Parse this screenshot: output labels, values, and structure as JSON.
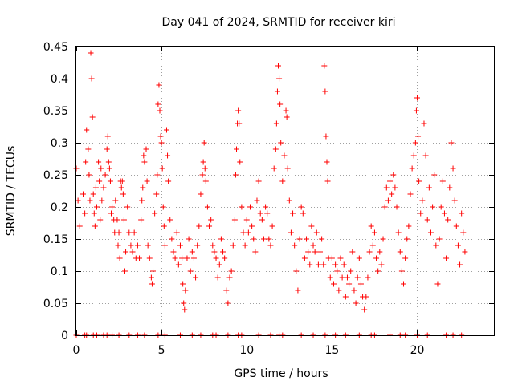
{
  "chart_data": {
    "type": "scatter",
    "title": "Day 041 of 2024, SRMTID for receiver kiri",
    "xlabel": "GPS time / hours",
    "ylabel": "SRMTID / TECUs",
    "xlim": [
      0,
      24.5
    ],
    "ylim": [
      0,
      0.45
    ],
    "x_ticks": [
      0,
      5,
      10,
      15,
      20
    ],
    "y_ticks": [
      0,
      0.05,
      0.1,
      0.15,
      0.2,
      0.25,
      0.3,
      0.35,
      0.4,
      0.45
    ],
    "x_tick_labels": [
      "0",
      "5",
      "10",
      "15",
      "20"
    ],
    "y_tick_labels": [
      "0",
      "0.05",
      "0.1",
      "0.15",
      "0.2",
      "0.25",
      "0.3",
      "0.35",
      "0.4",
      "0.45"
    ],
    "grid": true,
    "marker": "+",
    "color": "#ff0000",
    "points": [
      [
        0.0,
        0.26
      ],
      [
        0.1,
        0.21
      ],
      [
        0.2,
        0.17
      ],
      [
        0.4,
        0.22
      ],
      [
        0.5,
        0.19
      ],
      [
        0.55,
        0.27
      ],
      [
        0.6,
        0.32
      ],
      [
        0.7,
        0.29
      ],
      [
        0.75,
        0.25
      ],
      [
        0.8,
        0.21
      ],
      [
        0.85,
        0.44
      ],
      [
        0.9,
        0.4
      ],
      [
        0.95,
        0.34
      ],
      [
        1.0,
        0.22
      ],
      [
        1.05,
        0.19
      ],
      [
        1.1,
        0.17
      ],
      [
        1.15,
        0.23
      ],
      [
        1.2,
        0.2
      ],
      [
        1.3,
        0.27
      ],
      [
        1.35,
        0.24
      ],
      [
        1.4,
        0.18
      ],
      [
        1.45,
        0.26
      ],
      [
        1.5,
        0.21
      ],
      [
        1.6,
        0.23
      ],
      [
        1.7,
        0.25
      ],
      [
        1.8,
        0.29
      ],
      [
        1.85,
        0.31
      ],
      [
        1.9,
        0.27
      ],
      [
        1.95,
        0.26
      ],
      [
        2.0,
        0.24
      ],
      [
        2.05,
        0.19
      ],
      [
        2.1,
        0.2
      ],
      [
        2.2,
        0.18
      ],
      [
        2.25,
        0.16
      ],
      [
        2.3,
        0.21
      ],
      [
        2.4,
        0.18
      ],
      [
        2.45,
        0.14
      ],
      [
        2.5,
        0.16
      ],
      [
        2.55,
        0.12
      ],
      [
        2.6,
        0.24
      ],
      [
        2.65,
        0.23
      ],
      [
        2.7,
        0.24
      ],
      [
        2.75,
        0.22
      ],
      [
        2.8,
        0.18
      ],
      [
        2.85,
        0.1
      ],
      [
        2.9,
        0.13
      ],
      [
        3.0,
        0.2
      ],
      [
        3.1,
        0.16
      ],
      [
        3.2,
        0.14
      ],
      [
        3.3,
        0.13
      ],
      [
        3.4,
        0.16
      ],
      [
        3.5,
        0.12
      ],
      [
        3.6,
        0.14
      ],
      [
        3.7,
        0.12
      ],
      [
        3.8,
        0.18
      ],
      [
        3.85,
        0.21
      ],
      [
        3.9,
        0.23
      ],
      [
        3.95,
        0.28
      ],
      [
        4.0,
        0.27
      ],
      [
        4.1,
        0.29
      ],
      [
        4.15,
        0.24
      ],
      [
        4.2,
        0.14
      ],
      [
        4.3,
        0.12
      ],
      [
        4.4,
        0.09
      ],
      [
        4.45,
        0.08
      ],
      [
        4.5,
        0.1
      ],
      [
        4.6,
        0.19
      ],
      [
        4.7,
        0.22
      ],
      [
        4.75,
        0.25
      ],
      [
        4.8,
        0.36
      ],
      [
        4.85,
        0.39
      ],
      [
        4.9,
        0.35
      ],
      [
        4.95,
        0.31
      ],
      [
        5.0,
        0.3
      ],
      [
        5.05,
        0.26
      ],
      [
        5.1,
        0.2
      ],
      [
        5.15,
        0.17
      ],
      [
        5.2,
        0.14
      ],
      [
        5.3,
        0.32
      ],
      [
        5.35,
        0.28
      ],
      [
        5.4,
        0.24
      ],
      [
        5.5,
        0.18
      ],
      [
        5.6,
        0.15
      ],
      [
        5.7,
        0.13
      ],
      [
        5.8,
        0.12
      ],
      [
        5.9,
        0.16
      ],
      [
        6.0,
        0.11
      ],
      [
        6.1,
        0.14
      ],
      [
        6.2,
        0.12
      ],
      [
        6.25,
        0.08
      ],
      [
        6.3,
        0.05
      ],
      [
        6.35,
        0.04
      ],
      [
        6.4,
        0.07
      ],
      [
        6.5,
        0.12
      ],
      [
        6.6,
        0.15
      ],
      [
        6.7,
        0.1
      ],
      [
        6.8,
        0.13
      ],
      [
        6.9,
        0.12
      ],
      [
        7.0,
        0.09
      ],
      [
        7.1,
        0.14
      ],
      [
        7.2,
        0.17
      ],
      [
        7.3,
        0.22
      ],
      [
        7.4,
        0.25
      ],
      [
        7.45,
        0.27
      ],
      [
        7.5,
        0.3
      ],
      [
        7.55,
        0.26
      ],
      [
        7.6,
        0.24
      ],
      [
        7.7,
        0.2
      ],
      [
        7.8,
        0.17
      ],
      [
        7.9,
        0.18
      ],
      [
        8.0,
        0.14
      ],
      [
        8.1,
        0.13
      ],
      [
        8.2,
        0.12
      ],
      [
        8.3,
        0.09
      ],
      [
        8.4,
        0.11
      ],
      [
        8.5,
        0.15
      ],
      [
        8.6,
        0.13
      ],
      [
        8.7,
        0.12
      ],
      [
        8.8,
        0.07
      ],
      [
        8.9,
        0.05
      ],
      [
        9.0,
        0.09
      ],
      [
        9.1,
        0.1
      ],
      [
        9.2,
        0.14
      ],
      [
        9.3,
        0.18
      ],
      [
        9.35,
        0.25
      ],
      [
        9.4,
        0.29
      ],
      [
        9.45,
        0.33
      ],
      [
        9.5,
        0.35
      ],
      [
        9.55,
        0.33
      ],
      [
        9.6,
        0.27
      ],
      [
        9.7,
        0.2
      ],
      [
        9.8,
        0.16
      ],
      [
        9.9,
        0.14
      ],
      [
        10.0,
        0.18
      ],
      [
        10.1,
        0.16
      ],
      [
        10.2,
        0.2
      ],
      [
        10.3,
        0.17
      ],
      [
        10.4,
        0.15
      ],
      [
        10.5,
        0.13
      ],
      [
        10.6,
        0.21
      ],
      [
        10.7,
        0.24
      ],
      [
        10.8,
        0.19
      ],
      [
        10.9,
        0.18
      ],
      [
        11.0,
        0.15
      ],
      [
        11.1,
        0.2
      ],
      [
        11.2,
        0.19
      ],
      [
        11.3,
        0.15
      ],
      [
        11.4,
        0.14
      ],
      [
        11.5,
        0.17
      ],
      [
        11.6,
        0.26
      ],
      [
        11.7,
        0.29
      ],
      [
        11.75,
        0.33
      ],
      [
        11.8,
        0.38
      ],
      [
        11.85,
        0.42
      ],
      [
        11.9,
        0.4
      ],
      [
        11.95,
        0.36
      ],
      [
        12.0,
        0.3
      ],
      [
        12.1,
        0.24
      ],
      [
        12.2,
        0.28
      ],
      [
        12.3,
        0.35
      ],
      [
        12.35,
        0.34
      ],
      [
        12.4,
        0.26
      ],
      [
        12.5,
        0.21
      ],
      [
        12.6,
        0.16
      ],
      [
        12.7,
        0.19
      ],
      [
        12.8,
        0.14
      ],
      [
        12.9,
        0.1
      ],
      [
        13.0,
        0.07
      ],
      [
        13.1,
        0.15
      ],
      [
        13.2,
        0.2
      ],
      [
        13.3,
        0.19
      ],
      [
        13.4,
        0.12
      ],
      [
        13.5,
        0.15
      ],
      [
        13.6,
        0.13
      ],
      [
        13.7,
        0.11
      ],
      [
        13.8,
        0.17
      ],
      [
        13.9,
        0.14
      ],
      [
        14.0,
        0.13
      ],
      [
        14.1,
        0.16
      ],
      [
        14.2,
        0.11
      ],
      [
        14.3,
        0.13
      ],
      [
        14.4,
        0.15
      ],
      [
        14.5,
        0.11
      ],
      [
        14.55,
        0.42
      ],
      [
        14.6,
        0.38
      ],
      [
        14.65,
        0.31
      ],
      [
        14.7,
        0.27
      ],
      [
        14.75,
        0.24
      ],
      [
        14.8,
        0.12
      ],
      [
        14.9,
        0.09
      ],
      [
        15.0,
        0.12
      ],
      [
        15.1,
        0.08
      ],
      [
        15.2,
        0.11
      ],
      [
        15.3,
        0.1
      ],
      [
        15.4,
        0.07
      ],
      [
        15.5,
        0.12
      ],
      [
        15.6,
        0.09
      ],
      [
        15.7,
        0.11
      ],
      [
        15.8,
        0.06
      ],
      [
        15.9,
        0.09
      ],
      [
        16.0,
        0.08
      ],
      [
        16.1,
        0.1
      ],
      [
        16.2,
        0.13
      ],
      [
        16.3,
        0.07
      ],
      [
        16.4,
        0.05
      ],
      [
        16.5,
        0.09
      ],
      [
        16.6,
        0.12
      ],
      [
        16.7,
        0.08
      ],
      [
        16.8,
        0.06
      ],
      [
        16.9,
        0.04
      ],
      [
        17.0,
        0.06
      ],
      [
        17.1,
        0.09
      ],
      [
        17.2,
        0.13
      ],
      [
        17.3,
        0.17
      ],
      [
        17.4,
        0.14
      ],
      [
        17.5,
        0.16
      ],
      [
        17.6,
        0.12
      ],
      [
        17.7,
        0.1
      ],
      [
        17.8,
        0.13
      ],
      [
        17.9,
        0.11
      ],
      [
        18.0,
        0.15
      ],
      [
        18.1,
        0.2
      ],
      [
        18.2,
        0.23
      ],
      [
        18.3,
        0.21
      ],
      [
        18.4,
        0.24
      ],
      [
        18.5,
        0.22
      ],
      [
        18.6,
        0.25
      ],
      [
        18.7,
        0.23
      ],
      [
        18.8,
        0.2
      ],
      [
        18.9,
        0.16
      ],
      [
        19.0,
        0.13
      ],
      [
        19.1,
        0.1
      ],
      [
        19.2,
        0.08
      ],
      [
        19.3,
        0.12
      ],
      [
        19.4,
        0.15
      ],
      [
        19.5,
        0.17
      ],
      [
        19.6,
        0.22
      ],
      [
        19.7,
        0.26
      ],
      [
        19.8,
        0.28
      ],
      [
        19.9,
        0.3
      ],
      [
        19.95,
        0.35
      ],
      [
        20.0,
        0.37
      ],
      [
        20.05,
        0.31
      ],
      [
        20.1,
        0.24
      ],
      [
        20.2,
        0.19
      ],
      [
        20.3,
        0.21
      ],
      [
        20.4,
        0.33
      ],
      [
        20.5,
        0.28
      ],
      [
        20.6,
        0.18
      ],
      [
        20.7,
        0.23
      ],
      [
        20.8,
        0.16
      ],
      [
        20.9,
        0.2
      ],
      [
        21.0,
        0.25
      ],
      [
        21.1,
        0.14
      ],
      [
        21.2,
        0.08
      ],
      [
        21.3,
        0.15
      ],
      [
        21.4,
        0.2
      ],
      [
        21.5,
        0.24
      ],
      [
        21.6,
        0.19
      ],
      [
        21.7,
        0.12
      ],
      [
        21.8,
        0.18
      ],
      [
        21.9,
        0.23
      ],
      [
        22.0,
        0.3
      ],
      [
        22.1,
        0.26
      ],
      [
        22.2,
        0.21
      ],
      [
        22.3,
        0.17
      ],
      [
        22.4,
        0.14
      ],
      [
        22.5,
        0.11
      ],
      [
        22.6,
        0.19
      ],
      [
        22.7,
        0.16
      ],
      [
        22.8,
        0.13
      ]
    ],
    "zero_points": [
      0.0,
      0.5,
      0.6,
      1.0,
      1.2,
      1.6,
      1.8,
      2.1,
      2.5,
      3.1,
      3.6,
      4.0,
      4.8,
      5.2,
      6.1,
      6.8,
      7.3,
      8.0,
      8.2,
      8.9,
      9.5,
      9.7,
      10.7,
      11.4,
      11.9,
      12.1,
      13.2,
      13.9,
      14.6,
      15.2,
      15.8,
      16.6,
      17.3,
      17.5,
      18.4,
      19.0,
      19.3,
      20.0,
      20.6,
      21.7,
      22.1,
      22.6
    ]
  }
}
